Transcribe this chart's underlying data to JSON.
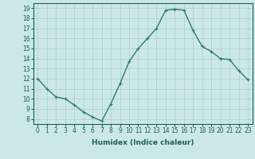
{
  "x": [
    0,
    1,
    2,
    3,
    4,
    5,
    6,
    7,
    8,
    9,
    10,
    11,
    12,
    13,
    14,
    15,
    16,
    17,
    18,
    19,
    20,
    21,
    22,
    23
  ],
  "y": [
    12,
    11,
    10.2,
    10,
    9.4,
    8.7,
    8.2,
    7.8,
    9.5,
    11.5,
    13.7,
    15.0,
    16.0,
    17.0,
    18.8,
    18.9,
    18.8,
    16.8,
    15.2,
    14.7,
    14.0,
    13.9,
    12.8,
    11.9
  ],
  "line_color": "#2e7d6e",
  "marker": "+",
  "bg_color": "#cce8e6",
  "grid_color": "#aacfcd",
  "xlabel": "Humidex (Indice chaleur)",
  "ylim": [
    7.5,
    19.5
  ],
  "xlim": [
    -0.5,
    23.5
  ],
  "yticks": [
    8,
    9,
    10,
    11,
    12,
    13,
    14,
    15,
    16,
    17,
    18,
    19
  ],
  "xticks": [
    0,
    1,
    2,
    3,
    4,
    5,
    6,
    7,
    8,
    9,
    10,
    11,
    12,
    13,
    14,
    15,
    16,
    17,
    18,
    19,
    20,
    21,
    22,
    23
  ],
  "xtick_labels": [
    "0",
    "1",
    "2",
    "3",
    "4",
    "5",
    "6",
    "7",
    "8",
    "9",
    "10",
    "11",
    "12",
    "13",
    "14",
    "15",
    "16",
    "17",
    "18",
    "19",
    "20",
    "21",
    "22",
    "23"
  ],
  "label_fontsize": 6.5,
  "tick_fontsize": 5.5,
  "line_width": 1.0,
  "marker_size": 3
}
